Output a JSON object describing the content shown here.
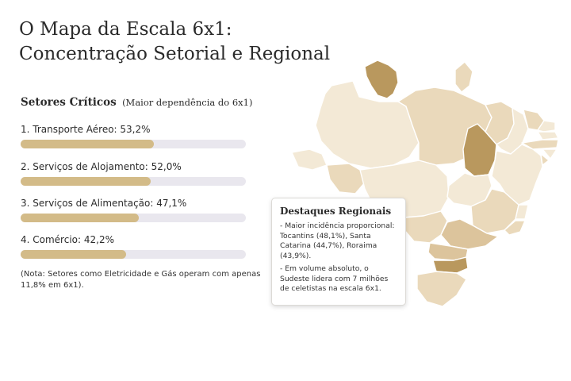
{
  "title": {
    "line1": "O Mapa da Escala 6x1:",
    "line2": "Concentração Setorial e Regional"
  },
  "sectors": {
    "heading": "Setores Críticos",
    "subheading": "(Maior dependência do 6x1)",
    "items": [
      {
        "label": "1. Transporte Aéreo: 53,2%",
        "value": 53.2
      },
      {
        "label": "2. Serviços de Alojamento: 52,0%",
        "value": 52.0
      },
      {
        "label": "3. Serviços de Alimentação: 47,1%",
        "value": 47.1
      },
      {
        "label": "4. Comércio: 42,2%",
        "value": 42.2
      }
    ],
    "bar_max": 90,
    "bar_color": "#d3bb88",
    "track_color": "#e9e7ee",
    "note": "(Nota: Setores como Eletricidade e Gás operam com apenas 11,8% em 6x1)."
  },
  "map": {
    "highlight_color": "#b9985e",
    "state_colors": [
      "#f3e9d6",
      "#ead9bb",
      "#dcc49c",
      "#b9985e"
    ]
  },
  "callout": {
    "title": "Destaques Regionais",
    "items": [
      "- Maior incidência proporcional: Tocantins (48,1%), Santa Catarina (44,7%), Roraima (43,9%).",
      "- Em volume absoluto, o Sudeste lidera com 7 milhões de celetistas na escala 6x1."
    ]
  }
}
